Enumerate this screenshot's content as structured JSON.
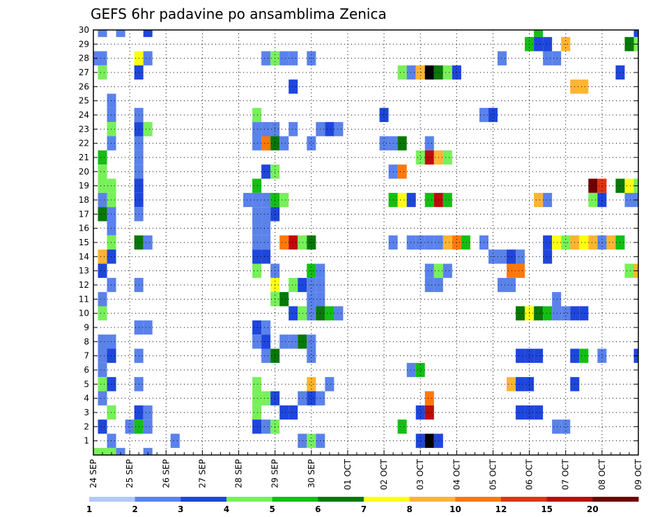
{
  "chart_data": {
    "type": "heatmap",
    "title": "GEFS 6hr padavine po ansamblima Zenica",
    "xlabel": "",
    "ylabel": "",
    "x_ticks": [
      "24 SEP",
      "25 SEP",
      "26 SEP",
      "27 SEP",
      "28 SEP",
      "29 SEP",
      "30 SEP",
      "01 OCT",
      "02 OCT",
      "03 OCT",
      "04 OCT",
      "05 OCT",
      "06 OCT",
      "07 OCT",
      "08 OCT",
      "09 OCT"
    ],
    "y_ticks": [
      "1",
      "2",
      "3",
      "4",
      "5",
      "6",
      "7",
      "8",
      "9",
      "10",
      "11",
      "12",
      "13",
      "14",
      "15",
      "16",
      "17",
      "18",
      "19",
      "20",
      "21",
      "22",
      "23",
      "24",
      "25",
      "26",
      "27",
      "28",
      "29",
      "30"
    ],
    "x_unit": "6-hour step from 24 SEP 00",
    "xlim": [
      0,
      60
    ],
    "ylim": [
      0,
      30
    ],
    "grid": true,
    "colorbar": {
      "levels": [
        "1",
        "2",
        "3",
        "4",
        "5",
        "6",
        "7",
        "8",
        "10",
        "12",
        "15",
        "20"
      ],
      "colors": [
        "#b4c8f8",
        "#5a82ea",
        "#1e46dc",
        "#78f05a",
        "#14be14",
        "#087808",
        "#ffff14",
        "#ffb432",
        "#ff780a",
        "#e13214",
        "#be0a0a",
        "#6e0000"
      ]
    },
    "cells": [
      [
        0,
        0,
        3
      ],
      [
        1,
        0,
        3
      ],
      [
        2,
        0,
        3
      ],
      [
        3,
        30,
        1
      ],
      [
        3,
        0,
        1
      ],
      [
        6,
        30,
        2
      ],
      [
        6,
        0,
        1
      ],
      [
        9,
        1,
        1
      ],
      [
        1,
        30,
        1
      ],
      [
        60,
        30,
        2
      ],
      [
        49,
        30,
        4
      ],
      [
        48,
        29,
        4
      ],
      [
        49,
        29,
        2
      ],
      [
        50,
        29,
        2
      ],
      [
        52,
        29,
        7
      ],
      [
        59,
        29,
        5
      ],
      [
        60,
        29,
        3
      ],
      [
        0,
        28,
        1
      ],
      [
        1,
        28,
        1
      ],
      [
        5,
        28,
        6
      ],
      [
        6,
        28,
        1
      ],
      [
        19,
        28,
        1
      ],
      [
        20,
        28,
        3
      ],
      [
        21,
        28,
        1
      ],
      [
        22,
        28,
        1
      ],
      [
        24,
        28,
        1
      ],
      [
        45,
        28,
        1
      ],
      [
        50,
        28,
        1
      ],
      [
        51,
        28,
        1
      ],
      [
        1,
        27,
        3
      ],
      [
        5,
        27,
        2
      ],
      [
        34,
        27,
        3
      ],
      [
        35,
        27,
        1
      ],
      [
        36,
        27,
        7
      ],
      [
        37,
        27,
        12
      ],
      [
        38,
        27,
        5
      ],
      [
        39,
        27,
        3
      ],
      [
        40,
        27,
        2
      ],
      [
        58,
        27,
        2
      ],
      [
        22,
        26,
        2
      ],
      [
        53,
        26,
        7
      ],
      [
        54,
        26,
        7
      ],
      [
        2,
        25,
        1
      ],
      [
        2,
        24,
        1
      ],
      [
        5,
        24,
        1
      ],
      [
        18,
        24,
        3
      ],
      [
        32,
        24,
        2
      ],
      [
        43,
        24,
        1
      ],
      [
        44,
        24,
        2
      ],
      [
        2,
        23,
        3
      ],
      [
        5,
        23,
        2
      ],
      [
        6,
        23,
        3
      ],
      [
        18,
        23,
        1
      ],
      [
        19,
        23,
        1
      ],
      [
        20,
        23,
        1
      ],
      [
        22,
        23,
        1
      ],
      [
        25,
        23,
        1
      ],
      [
        26,
        23,
        2
      ],
      [
        27,
        23,
        1
      ],
      [
        2,
        22,
        1
      ],
      [
        5,
        22,
        1
      ],
      [
        18,
        22,
        1
      ],
      [
        19,
        22,
        8
      ],
      [
        20,
        22,
        5
      ],
      [
        21,
        22,
        1
      ],
      [
        24,
        22,
        1
      ],
      [
        32,
        22,
        1
      ],
      [
        33,
        22,
        1
      ],
      [
        34,
        22,
        5
      ],
      [
        37,
        22,
        1
      ],
      [
        1,
        21,
        4
      ],
      [
        5,
        21,
        1
      ],
      [
        36,
        21,
        3
      ],
      [
        37,
        21,
        10
      ],
      [
        38,
        21,
        7
      ],
      [
        39,
        21,
        3
      ],
      [
        1,
        20,
        3
      ],
      [
        5,
        20,
        1
      ],
      [
        19,
        20,
        2
      ],
      [
        20,
        20,
        3
      ],
      [
        33,
        20,
        1
      ],
      [
        34,
        20,
        8
      ],
      [
        1,
        19,
        3
      ],
      [
        2,
        19,
        3
      ],
      [
        5,
        19,
        2
      ],
      [
        18,
        19,
        4
      ],
      [
        55,
        19,
        11
      ],
      [
        56,
        19,
        9
      ],
      [
        58,
        19,
        5
      ],
      [
        59,
        19,
        6
      ],
      [
        60,
        19,
        3
      ],
      [
        1,
        18,
        1
      ],
      [
        2,
        18,
        3
      ],
      [
        5,
        18,
        2
      ],
      [
        17,
        18,
        1
      ],
      [
        18,
        18,
        1
      ],
      [
        19,
        18,
        1
      ],
      [
        20,
        18,
        4
      ],
      [
        21,
        18,
        3
      ],
      [
        33,
        18,
        4
      ],
      [
        34,
        18,
        6
      ],
      [
        35,
        18,
        2
      ],
      [
        37,
        18,
        4
      ],
      [
        38,
        18,
        10
      ],
      [
        39,
        18,
        4
      ],
      [
        49,
        18,
        7
      ],
      [
        50,
        18,
        1
      ],
      [
        55,
        18,
        3
      ],
      [
        56,
        18,
        2
      ],
      [
        59,
        18,
        1
      ],
      [
        60,
        18,
        1
      ],
      [
        1,
        17,
        5
      ],
      [
        2,
        17,
        1
      ],
      [
        5,
        17,
        1
      ],
      [
        18,
        17,
        1
      ],
      [
        19,
        17,
        1
      ],
      [
        20,
        17,
        2
      ],
      [
        2,
        16,
        1
      ],
      [
        18,
        16,
        1
      ],
      [
        19,
        16,
        1
      ],
      [
        2,
        15,
        3
      ],
      [
        5,
        15,
        5
      ],
      [
        6,
        15,
        1
      ],
      [
        18,
        15,
        1
      ],
      [
        19,
        15,
        1
      ],
      [
        21,
        15,
        8
      ],
      [
        22,
        15,
        10
      ],
      [
        23,
        15,
        3
      ],
      [
        24,
        15,
        5
      ],
      [
        33,
        15,
        1
      ],
      [
        35,
        15,
        1
      ],
      [
        36,
        15,
        1
      ],
      [
        37,
        15,
        1
      ],
      [
        38,
        15,
        1
      ],
      [
        39,
        15,
        7
      ],
      [
        40,
        15,
        8
      ],
      [
        41,
        15,
        4
      ],
      [
        43,
        15,
        1
      ],
      [
        50,
        15,
        2
      ],
      [
        51,
        15,
        6
      ],
      [
        52,
        15,
        3
      ],
      [
        53,
        15,
        7
      ],
      [
        54,
        15,
        6
      ],
      [
        55,
        15,
        7
      ],
      [
        56,
        15,
        1
      ],
      [
        57,
        15,
        7
      ],
      [
        58,
        15,
        4
      ],
      [
        1,
        14,
        7
      ],
      [
        2,
        14,
        2
      ],
      [
        18,
        14,
        2
      ],
      [
        19,
        14,
        2
      ],
      [
        44,
        14,
        1
      ],
      [
        45,
        14,
        1
      ],
      [
        46,
        14,
        2
      ],
      [
        47,
        14,
        1
      ],
      [
        50,
        14,
        2
      ],
      [
        1,
        13,
        2
      ],
      [
        18,
        13,
        3
      ],
      [
        20,
        13,
        1
      ],
      [
        24,
        13,
        4
      ],
      [
        25,
        13,
        1
      ],
      [
        37,
        13,
        1
      ],
      [
        38,
        13,
        3
      ],
      [
        39,
        13,
        1
      ],
      [
        46,
        13,
        8
      ],
      [
        47,
        13,
        8
      ],
      [
        59,
        13,
        3
      ],
      [
        60,
        13,
        7
      ],
      [
        2,
        12,
        1
      ],
      [
        5,
        12,
        1
      ],
      [
        20,
        12,
        6
      ],
      [
        22,
        12,
        3
      ],
      [
        23,
        12,
        2
      ],
      [
        24,
        12,
        1
      ],
      [
        25,
        12,
        1
      ],
      [
        37,
        12,
        1
      ],
      [
        38,
        12,
        1
      ],
      [
        45,
        12,
        1
      ],
      [
        46,
        12,
        1
      ],
      [
        1,
        11,
        1
      ],
      [
        20,
        11,
        3
      ],
      [
        21,
        11,
        5
      ],
      [
        24,
        11,
        1
      ],
      [
        25,
        11,
        1
      ],
      [
        51,
        11,
        1
      ],
      [
        1,
        10,
        3
      ],
      [
        22,
        10,
        2
      ],
      [
        23,
        10,
        3
      ],
      [
        24,
        10,
        1
      ],
      [
        25,
        10,
        5
      ],
      [
        26,
        10,
        4
      ],
      [
        27,
        10,
        1
      ],
      [
        47,
        10,
        5
      ],
      [
        48,
        10,
        6
      ],
      [
        49,
        10,
        5
      ],
      [
        50,
        10,
        4
      ],
      [
        51,
        10,
        1
      ],
      [
        52,
        10,
        1
      ],
      [
        53,
        10,
        2
      ],
      [
        54,
        10,
        2
      ],
      [
        5,
        9,
        1
      ],
      [
        6,
        9,
        1
      ],
      [
        18,
        9,
        2
      ],
      [
        19,
        9,
        1
      ],
      [
        1,
        8,
        1
      ],
      [
        2,
        8,
        1
      ],
      [
        18,
        8,
        1
      ],
      [
        19,
        8,
        2
      ],
      [
        21,
        8,
        1
      ],
      [
        22,
        8,
        1
      ],
      [
        23,
        8,
        5
      ],
      [
        24,
        8,
        1
      ],
      [
        1,
        7,
        1
      ],
      [
        2,
        7,
        2
      ],
      [
        5,
        7,
        1
      ],
      [
        19,
        7,
        1
      ],
      [
        20,
        7,
        5
      ],
      [
        24,
        7,
        1
      ],
      [
        47,
        7,
        2
      ],
      [
        48,
        7,
        2
      ],
      [
        49,
        7,
        2
      ],
      [
        53,
        7,
        2
      ],
      [
        54,
        7,
        4
      ],
      [
        56,
        7,
        1
      ],
      [
        60,
        7,
        2
      ],
      [
        1,
        6,
        1
      ],
      [
        35,
        6,
        1
      ],
      [
        36,
        6,
        4
      ],
      [
        1,
        5,
        3
      ],
      [
        2,
        5,
        2
      ],
      [
        5,
        5,
        1
      ],
      [
        18,
        5,
        3
      ],
      [
        24,
        5,
        7
      ],
      [
        26,
        5,
        1
      ],
      [
        46,
        5,
        7
      ],
      [
        47,
        5,
        2
      ],
      [
        48,
        5,
        2
      ],
      [
        53,
        5,
        2
      ],
      [
        1,
        4,
        1
      ],
      [
        18,
        4,
        3
      ],
      [
        19,
        4,
        3
      ],
      [
        20,
        4,
        2
      ],
      [
        23,
        4,
        1
      ],
      [
        24,
        4,
        2
      ],
      [
        25,
        4,
        1
      ],
      [
        37,
        4,
        8
      ],
      [
        2,
        3,
        3
      ],
      [
        5,
        3,
        2
      ],
      [
        6,
        3,
        1
      ],
      [
        18,
        3,
        3
      ],
      [
        21,
        3,
        2
      ],
      [
        22,
        3,
        2
      ],
      [
        36,
        3,
        2
      ],
      [
        37,
        3,
        10
      ],
      [
        47,
        3,
        2
      ],
      [
        48,
        3,
        2
      ],
      [
        49,
        3,
        2
      ],
      [
        1,
        2,
        2
      ],
      [
        4,
        2,
        1
      ],
      [
        5,
        2,
        4
      ],
      [
        6,
        2,
        1
      ],
      [
        18,
        2,
        2
      ],
      [
        19,
        2,
        1
      ],
      [
        20,
        2,
        3
      ],
      [
        34,
        2,
        4
      ],
      [
        51,
        2,
        1
      ],
      [
        52,
        2,
        1
      ],
      [
        2,
        1,
        1
      ],
      [
        23,
        1,
        1
      ],
      [
        24,
        1,
        3
      ],
      [
        25,
        1,
        1
      ],
      [
        36,
        1,
        2
      ],
      [
        37,
        1,
        12
      ],
      [
        38,
        1,
        2
      ]
    ]
  }
}
